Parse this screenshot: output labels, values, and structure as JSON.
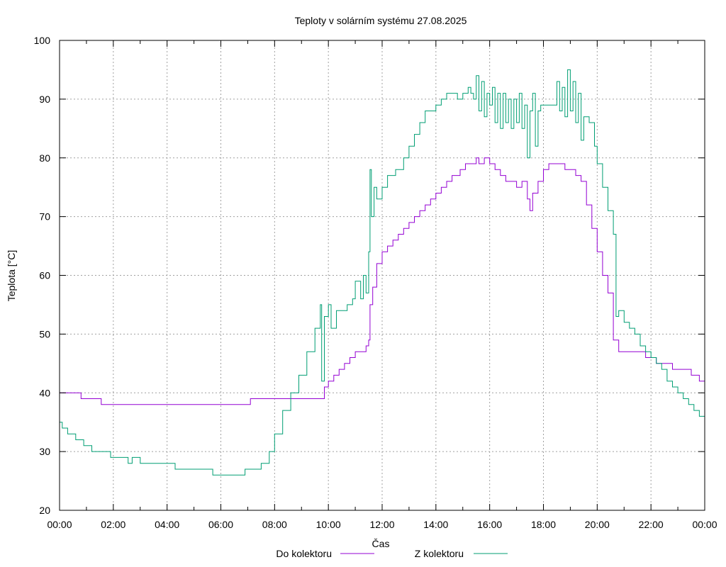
{
  "chart_data": {
    "type": "line",
    "title": "Teploty v solárním systému 27.08.2025",
    "xlabel": "Čas",
    "ylabel": "Teplota [°C]",
    "xlim": [
      0,
      24
    ],
    "ylim": [
      20,
      100
    ],
    "grid": true,
    "legend_position": "bottom",
    "x_tick_labels": [
      "00:00",
      "02:00",
      "04:00",
      "06:00",
      "08:00",
      "10:00",
      "12:00",
      "14:00",
      "16:00",
      "18:00",
      "20:00",
      "22:00",
      "00:00"
    ],
    "y_ticks": [
      20,
      30,
      40,
      50,
      60,
      70,
      80,
      90,
      100
    ],
    "series": [
      {
        "name": "Do kolektoru",
        "color": "#9400d3",
        "points": [
          [
            0.0,
            40
          ],
          [
            0.8,
            40
          ],
          [
            0.8,
            39
          ],
          [
            1.5,
            39
          ],
          [
            1.55,
            38
          ],
          [
            3.0,
            38
          ],
          [
            5.0,
            38
          ],
          [
            7.1,
            38
          ],
          [
            7.1,
            39
          ],
          [
            8.0,
            39
          ],
          [
            9.0,
            39
          ],
          [
            9.8,
            39
          ],
          [
            9.85,
            41
          ],
          [
            10.0,
            42
          ],
          [
            10.2,
            43
          ],
          [
            10.4,
            44
          ],
          [
            10.6,
            45
          ],
          [
            10.8,
            46
          ],
          [
            11.0,
            47
          ],
          [
            11.3,
            47
          ],
          [
            11.4,
            48
          ],
          [
            11.5,
            49
          ],
          [
            11.55,
            55
          ],
          [
            11.65,
            58
          ],
          [
            11.8,
            62
          ],
          [
            12.0,
            64
          ],
          [
            12.2,
            65
          ],
          [
            12.4,
            66
          ],
          [
            12.6,
            67
          ],
          [
            12.8,
            68
          ],
          [
            13.0,
            69
          ],
          [
            13.2,
            70
          ],
          [
            13.4,
            71
          ],
          [
            13.6,
            72
          ],
          [
            13.8,
            73
          ],
          [
            14.0,
            74
          ],
          [
            14.2,
            75
          ],
          [
            14.4,
            76
          ],
          [
            14.6,
            77
          ],
          [
            14.9,
            78
          ],
          [
            15.1,
            79
          ],
          [
            15.4,
            79
          ],
          [
            15.5,
            80
          ],
          [
            15.6,
            79
          ],
          [
            15.8,
            80
          ],
          [
            16.0,
            79
          ],
          [
            16.2,
            78
          ],
          [
            16.4,
            77
          ],
          [
            16.6,
            76
          ],
          [
            16.8,
            76
          ],
          [
            17.0,
            75
          ],
          [
            17.2,
            76
          ],
          [
            17.4,
            73
          ],
          [
            17.5,
            71
          ],
          [
            17.6,
            74
          ],
          [
            17.8,
            76
          ],
          [
            18.0,
            78
          ],
          [
            18.2,
            79
          ],
          [
            18.6,
            79
          ],
          [
            18.8,
            78
          ],
          [
            19.0,
            78
          ],
          [
            19.2,
            77
          ],
          [
            19.4,
            76
          ],
          [
            19.6,
            72
          ],
          [
            19.8,
            68
          ],
          [
            20.0,
            64
          ],
          [
            20.2,
            60
          ],
          [
            20.4,
            57
          ],
          [
            20.6,
            49
          ],
          [
            20.8,
            47
          ],
          [
            21.0,
            47
          ],
          [
            21.4,
            47
          ],
          [
            21.8,
            46
          ],
          [
            22.2,
            45
          ],
          [
            22.6,
            45
          ],
          [
            22.8,
            44
          ],
          [
            23.2,
            44
          ],
          [
            23.5,
            43
          ],
          [
            23.8,
            42
          ],
          [
            24.0,
            41
          ]
        ]
      },
      {
        "name": "Z kolektoru",
        "color": "#009e73",
        "points": [
          [
            0.0,
            35
          ],
          [
            0.1,
            34
          ],
          [
            0.3,
            33
          ],
          [
            0.6,
            32
          ],
          [
            0.9,
            31
          ],
          [
            1.2,
            30
          ],
          [
            1.6,
            30
          ],
          [
            1.9,
            29
          ],
          [
            2.3,
            29
          ],
          [
            2.55,
            28
          ],
          [
            2.7,
            29
          ],
          [
            3.0,
            28
          ],
          [
            3.5,
            28
          ],
          [
            4.0,
            28
          ],
          [
            4.3,
            27
          ],
          [
            5.0,
            27
          ],
          [
            5.6,
            27
          ],
          [
            5.7,
            26
          ],
          [
            6.2,
            26
          ],
          [
            6.8,
            26
          ],
          [
            6.9,
            27
          ],
          [
            7.3,
            27
          ],
          [
            7.5,
            28
          ],
          [
            7.8,
            30
          ],
          [
            8.0,
            33
          ],
          [
            8.3,
            37
          ],
          [
            8.6,
            40
          ],
          [
            8.9,
            43
          ],
          [
            9.2,
            47
          ],
          [
            9.5,
            51
          ],
          [
            9.7,
            55
          ],
          [
            9.75,
            42
          ],
          [
            9.85,
            53
          ],
          [
            10.0,
            55
          ],
          [
            10.1,
            51
          ],
          [
            10.3,
            54
          ],
          [
            10.5,
            54
          ],
          [
            10.7,
            55
          ],
          [
            10.9,
            56
          ],
          [
            11.0,
            59
          ],
          [
            11.2,
            56
          ],
          [
            11.3,
            60
          ],
          [
            11.4,
            57
          ],
          [
            11.5,
            64
          ],
          [
            11.55,
            78
          ],
          [
            11.6,
            70
          ],
          [
            11.7,
            75
          ],
          [
            11.8,
            73
          ],
          [
            12.0,
            75
          ],
          [
            12.2,
            77
          ],
          [
            12.5,
            78
          ],
          [
            12.8,
            80
          ],
          [
            13.0,
            82
          ],
          [
            13.2,
            84
          ],
          [
            13.4,
            86
          ],
          [
            13.6,
            88
          ],
          [
            13.9,
            88
          ],
          [
            14.0,
            89
          ],
          [
            14.2,
            90
          ],
          [
            14.4,
            91
          ],
          [
            14.6,
            91
          ],
          [
            14.8,
            90
          ],
          [
            15.0,
            91
          ],
          [
            15.2,
            92
          ],
          [
            15.3,
            91
          ],
          [
            15.4,
            90
          ],
          [
            15.5,
            94
          ],
          [
            15.6,
            88
          ],
          [
            15.7,
            93
          ],
          [
            15.8,
            87
          ],
          [
            15.9,
            91
          ],
          [
            16.0,
            89
          ],
          [
            16.1,
            92
          ],
          [
            16.2,
            86
          ],
          [
            16.3,
            91
          ],
          [
            16.4,
            85
          ],
          [
            16.5,
            91
          ],
          [
            16.6,
            86
          ],
          [
            16.7,
            90
          ],
          [
            16.8,
            85
          ],
          [
            16.9,
            90
          ],
          [
            17.0,
            86
          ],
          [
            17.1,
            91
          ],
          [
            17.2,
            85
          ],
          [
            17.3,
            89
          ],
          [
            17.4,
            80
          ],
          [
            17.5,
            88
          ],
          [
            17.6,
            91
          ],
          [
            17.7,
            82
          ],
          [
            17.8,
            88
          ],
          [
            17.9,
            89
          ],
          [
            18.0,
            89
          ],
          [
            18.2,
            89
          ],
          [
            18.4,
            89
          ],
          [
            18.5,
            93
          ],
          [
            18.6,
            88
          ],
          [
            18.7,
            92
          ],
          [
            18.8,
            87
          ],
          [
            18.9,
            95
          ],
          [
            19.0,
            88
          ],
          [
            19.1,
            93
          ],
          [
            19.2,
            86
          ],
          [
            19.3,
            91
          ],
          [
            19.4,
            83
          ],
          [
            19.5,
            87
          ],
          [
            19.7,
            86
          ],
          [
            19.9,
            82
          ],
          [
            20.0,
            79
          ],
          [
            20.2,
            75
          ],
          [
            20.4,
            71
          ],
          [
            20.6,
            67
          ],
          [
            20.7,
            53
          ],
          [
            20.8,
            54
          ],
          [
            21.0,
            52
          ],
          [
            21.2,
            51
          ],
          [
            21.4,
            50
          ],
          [
            21.6,
            48
          ],
          [
            21.8,
            47
          ],
          [
            22.0,
            46
          ],
          [
            22.2,
            45
          ],
          [
            22.4,
            44
          ],
          [
            22.6,
            42
          ],
          [
            22.8,
            41
          ],
          [
            23.0,
            40
          ],
          [
            23.2,
            39
          ],
          [
            23.4,
            38
          ],
          [
            23.6,
            37
          ],
          [
            23.8,
            36
          ],
          [
            24.0,
            35
          ]
        ]
      }
    ]
  }
}
